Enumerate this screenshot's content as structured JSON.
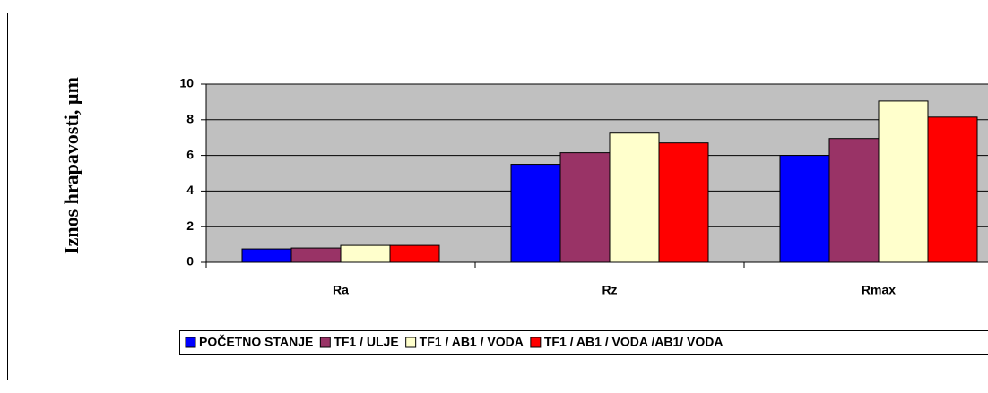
{
  "chart_data": {
    "type": "bar",
    "y_label": "Iznos hrapavosti, µm",
    "categories": [
      "Ra",
      "Rz",
      "Rmax"
    ],
    "series": [
      {
        "name": "POČETNO STANJE",
        "color": "#0000ff",
        "values": [
          0.75,
          5.5,
          6.0
        ]
      },
      {
        "name": "TF1 / ULJE",
        "color": "#993366",
        "values": [
          0.8,
          6.15,
          6.95
        ]
      },
      {
        "name": "TF1 / AB1 / VODA",
        "color": "#ffffcc",
        "values": [
          0.95,
          7.25,
          9.05
        ]
      },
      {
        "name": "TF1 / AB1 / VODA /AB1/ VODA",
        "color": "#ff0000",
        "values": [
          0.95,
          6.7,
          8.15
        ]
      }
    ],
    "ylim": [
      0,
      10
    ],
    "yticks": [
      0,
      2,
      4,
      6,
      8,
      10
    ],
    "grid": true,
    "legend": "bottom"
  }
}
